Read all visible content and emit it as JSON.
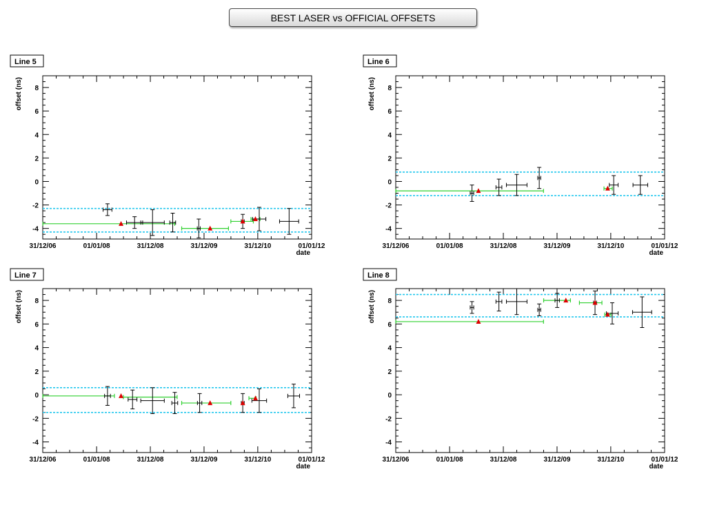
{
  "page": {
    "title": "BEST LASER vs OFFICIAL OFFSETS"
  },
  "chart_data": [
    {
      "type": "scatter",
      "panel": "Line 5",
      "xlabel": "date",
      "ylabel": "offset (ns)",
      "xticks": [
        "31/12/06",
        "01/01/08",
        "31/12/08",
        "31/12/09",
        "31/12/10",
        "01/01/12"
      ],
      "ylim": [
        -4.9,
        9
      ],
      "yticks": [
        -4,
        -2,
        0,
        2,
        4,
        6,
        8
      ],
      "band": [
        -4.3,
        -2.3
      ],
      "black": [
        {
          "x": "2008-03-15",
          "xerr": 30,
          "y": -2.4,
          "yerr": 0.5
        },
        {
          "x": "2008-09-15",
          "xerr": 55,
          "y": -3.5,
          "yerr": 0.5
        },
        {
          "x": "2009-01-15",
          "xerr": 80,
          "y": -3.5,
          "yerr": 1.1
        },
        {
          "x": "2009-06-01",
          "xerr": 20,
          "y": -3.5,
          "yerr": 0.8
        },
        {
          "x": "2009-11-25",
          "xerr": 10,
          "y": -4.0,
          "yerr": 0.8
        },
        {
          "x": "2010-09-20",
          "xerr": 10,
          "y": -3.4,
          "yerr": 0.6
        },
        {
          "x": "2011-01-10",
          "xerr": 45,
          "y": -3.2,
          "yerr": 1.0
        },
        {
          "x": "2011-08-01",
          "xerr": 65,
          "y": -3.4,
          "yerr": 1.1
        }
      ],
      "green": [
        {
          "from": "2007-01-01",
          "to": "2009-06-15",
          "y": -3.6
        },
        {
          "from": "2009-08-01",
          "to": "2010-06-15",
          "y": -4.0
        },
        {
          "from": "2010-07-01",
          "to": "2010-12-01",
          "y": -3.4
        },
        {
          "from": "2010-11-15",
          "to": "2011-01-15",
          "y": -3.2
        }
      ],
      "red": [
        {
          "x": "2008-06-15",
          "y": -3.6
        },
        {
          "x": "2010-02-10",
          "y": -4.0
        },
        {
          "x": "2010-09-20",
          "y": -3.4
        },
        {
          "x": "2010-12-15",
          "y": -3.2
        }
      ]
    },
    {
      "type": "scatter",
      "panel": "Line 6",
      "xlabel": "date",
      "ylabel": "offset (ns)",
      "xticks": [
        "31/12/06",
        "01/01/08",
        "31/12/08",
        "31/12/09",
        "31/12/10",
        "01/01/12"
      ],
      "ylim": [
        -4.9,
        9
      ],
      "yticks": [
        -4,
        -2,
        0,
        2,
        4,
        6,
        8
      ],
      "band": [
        -1.2,
        0.8
      ],
      "black": [
        {
          "x": "2008-06-01",
          "xerr": 12,
          "y": -1.0,
          "yerr": 0.7
        },
        {
          "x": "2008-12-01",
          "xerr": 20,
          "y": -0.5,
          "yerr": 0.7
        },
        {
          "x": "2009-04-01",
          "xerr": 70,
          "y": -0.3,
          "yerr": 0.9
        },
        {
          "x": "2009-09-01",
          "xerr": 10,
          "y": 0.3,
          "yerr": 0.9
        },
        {
          "x": "2011-01-20",
          "xerr": 30,
          "y": -0.3,
          "yerr": 0.8
        },
        {
          "x": "2011-07-20",
          "xerr": 50,
          "y": -0.3,
          "yerr": 0.8
        }
      ],
      "green": [
        {
          "from": "2007-01-01",
          "to": "2009-09-30",
          "y": -0.8
        },
        {
          "from": "2010-11-15",
          "to": "2011-01-10",
          "y": -0.6
        }
      ],
      "red": [
        {
          "x": "2008-07-15",
          "y": -0.8
        },
        {
          "x": "2010-12-10",
          "y": -0.6
        }
      ]
    },
    {
      "type": "scatter",
      "panel": "Line 7",
      "xlabel": "date",
      "ylabel": "offset (ns)",
      "xticks": [
        "31/12/06",
        "01/01/08",
        "31/12/08",
        "31/12/09",
        "31/12/10",
        "01/01/12"
      ],
      "ylim": [
        -4.9,
        9
      ],
      "yticks": [
        -4,
        -2,
        0,
        2,
        4,
        6,
        8
      ],
      "band": [
        -1.5,
        0.6
      ],
      "black": [
        {
          "x": "2008-03-15",
          "xerr": 20,
          "y": -0.1,
          "yerr": 0.8
        },
        {
          "x": "2008-09-01",
          "xerr": 30,
          "y": -0.4,
          "yerr": 0.8
        },
        {
          "x": "2009-01-15",
          "xerr": 80,
          "y": -0.5,
          "yerr": 1.1
        },
        {
          "x": "2009-06-15",
          "xerr": 20,
          "y": -0.7,
          "yerr": 0.9
        },
        {
          "x": "2009-12-01",
          "xerr": 15,
          "y": -0.7,
          "yerr": 0.8
        },
        {
          "x": "2010-09-20",
          "xerr": 10,
          "y": -0.7,
          "yerr": 0.8
        },
        {
          "x": "2011-01-10",
          "xerr": 50,
          "y": -0.5,
          "yerr": 1.0
        },
        {
          "x": "2011-09-01",
          "xerr": 40,
          "y": -0.1,
          "yerr": 1.0
        }
      ],
      "green": [
        {
          "from": "2007-01-01",
          "to": "2008-05-01",
          "y": -0.1
        },
        {
          "from": "2008-07-01",
          "to": "2009-07-01",
          "y": -0.2
        },
        {
          "from": "2009-08-01",
          "to": "2010-07-01",
          "y": -0.7
        },
        {
          "from": "2010-11-01",
          "to": "2010-12-20",
          "y": -0.3
        }
      ],
      "red": [
        {
          "x": "2008-06-15",
          "y": -0.1
        },
        {
          "x": "2010-02-10",
          "y": -0.7
        },
        {
          "x": "2010-09-20",
          "y": -0.7
        },
        {
          "x": "2010-12-15",
          "y": -0.3
        }
      ]
    },
    {
      "type": "scatter",
      "panel": "Line 8",
      "xlabel": "date",
      "ylabel": "offset (ns)",
      "xticks": [
        "31/12/06",
        "01/01/08",
        "31/12/08",
        "31/12/09",
        "31/12/10",
        "01/01/12"
      ],
      "ylim": [
        -4.9,
        9
      ],
      "yticks": [
        -4,
        -2,
        0,
        2,
        4,
        6,
        8
      ],
      "band": [
        6.6,
        8.5
      ],
      "black": [
        {
          "x": "2008-06-01",
          "xerr": 12,
          "y": 7.4,
          "yerr": 0.5
        },
        {
          "x": "2008-12-01",
          "xerr": 20,
          "y": 7.9,
          "yerr": 0.8
        },
        {
          "x": "2009-04-01",
          "xerr": 70,
          "y": 7.9,
          "yerr": 1.1
        },
        {
          "x": "2009-09-01",
          "xerr": 10,
          "y": 7.2,
          "yerr": 0.5
        },
        {
          "x": "2010-01-01",
          "xerr": 15,
          "y": 8.0,
          "yerr": 0.6
        },
        {
          "x": "2010-09-15",
          "xerr": 10,
          "y": 7.8,
          "yerr": 1.0
        },
        {
          "x": "2011-01-10",
          "xerr": 40,
          "y": 6.9,
          "yerr": 0.9
        },
        {
          "x": "2011-08-01",
          "xerr": 65,
          "y": 7.0,
          "yerr": 1.3
        }
      ],
      "green": [
        {
          "from": "2007-01-01",
          "to": "2009-09-30",
          "y": 6.2
        },
        {
          "from": "2009-10-01",
          "to": "2010-04-01",
          "y": 8.0
        },
        {
          "from": "2010-06-01",
          "to": "2010-11-01",
          "y": 7.8
        },
        {
          "from": "2010-11-20",
          "to": "2011-01-01",
          "y": 6.8
        }
      ],
      "red": [
        {
          "x": "2008-07-15",
          "y": 6.2
        },
        {
          "x": "2010-03-01",
          "y": 8.0
        },
        {
          "x": "2010-09-15",
          "y": 7.8
        },
        {
          "x": "2010-12-10",
          "y": 6.8
        }
      ]
    }
  ],
  "colors": {
    "band": "#22c7ee",
    "green": "#2fd02f",
    "red": "#dd0000",
    "black": "#000000"
  }
}
